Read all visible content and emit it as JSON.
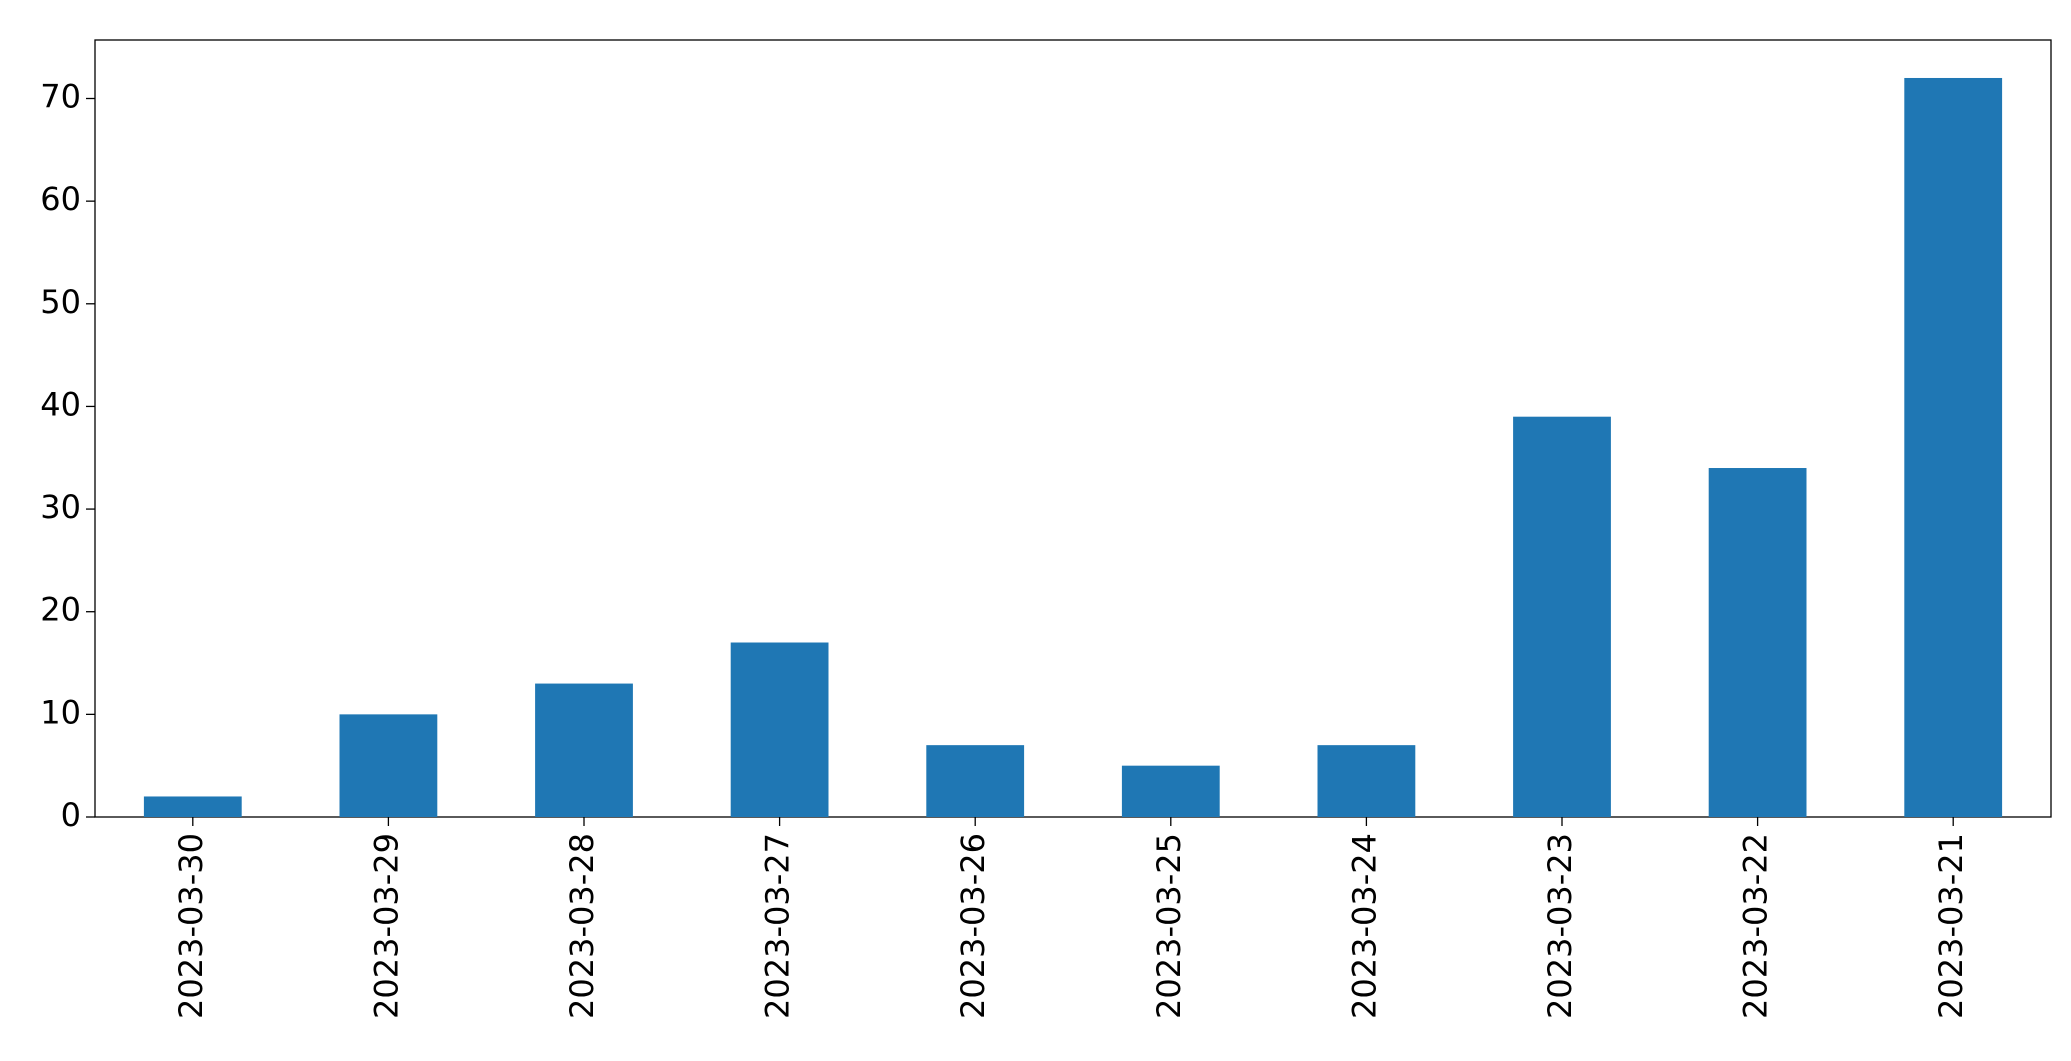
{
  "chart_data": {
    "type": "bar",
    "categories": [
      "2023-03-30",
      "2023-03-29",
      "2023-03-28",
      "2023-03-27",
      "2023-03-26",
      "2023-03-25",
      "2023-03-24",
      "2023-03-23",
      "2023-03-22",
      "2023-03-21"
    ],
    "values": [
      2,
      10,
      13,
      17,
      7,
      5,
      7,
      39,
      34,
      72
    ],
    "color": "#1f77b4",
    "ylim": [
      0,
      75.7
    ],
    "yticks": [
      0,
      10,
      20,
      30,
      40,
      50,
      60,
      70
    ],
    "grid": false
  }
}
